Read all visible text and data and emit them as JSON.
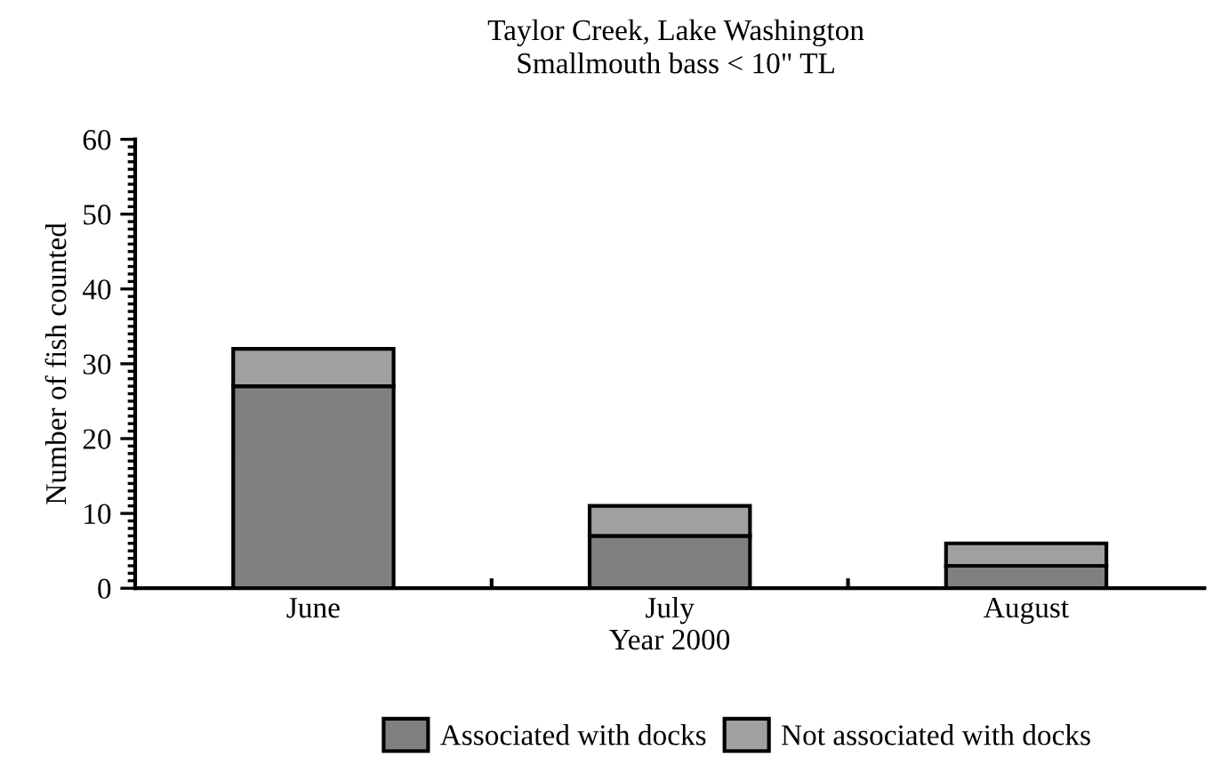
{
  "chart_data": {
    "type": "bar",
    "title": "Taylor Creek, Lake Washington\nSmallmouth bass < 10\" TL",
    "xlabel": "Year 2000",
    "ylabel": "Number of fish counted",
    "categories": [
      "June",
      "July",
      "August"
    ],
    "stacked": true,
    "series": [
      {
        "name": "Associated with docks",
        "color": "#808080",
        "values": [
          27,
          7,
          3
        ]
      },
      {
        "name": "Not associated with docks",
        "color": "#a0a0a0",
        "values": [
          5,
          4,
          3
        ]
      }
    ],
    "ylim": [
      0,
      60
    ],
    "yticks": [
      0,
      10,
      20,
      30,
      40,
      50,
      60
    ],
    "grid": false,
    "legend": "bottom"
  }
}
